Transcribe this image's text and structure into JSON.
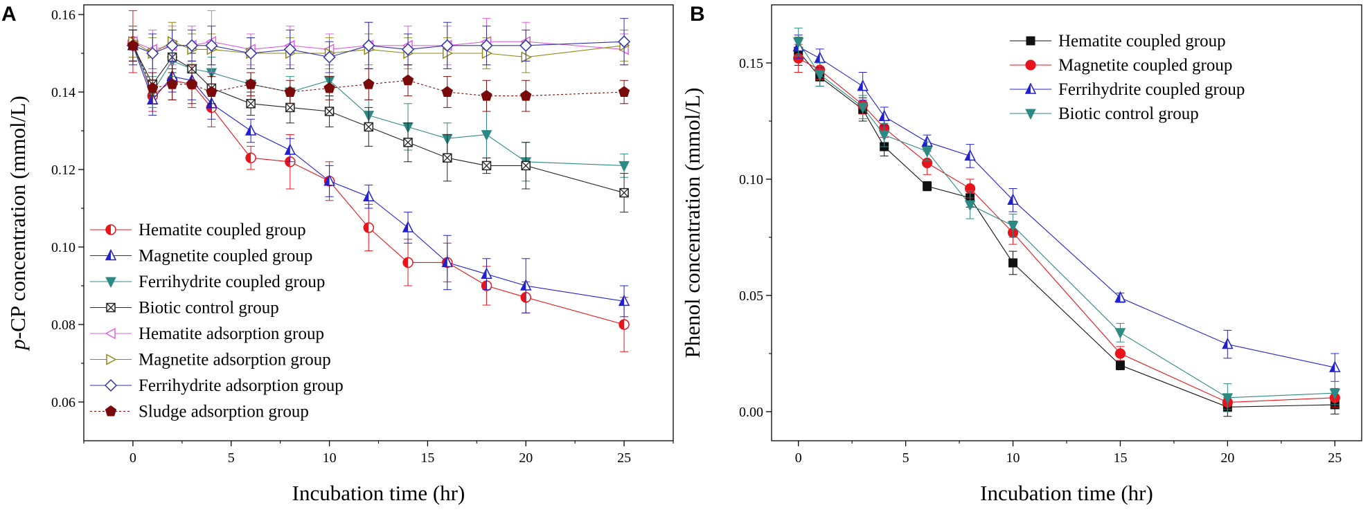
{
  "chart_data": [
    {
      "panel_label": "A",
      "type": "line",
      "xlabel": "Incubation time (hr)",
      "ylabel_italic": "p",
      "ylabel": "-CP concentration (mmol/L)",
      "xlim": [
        -2.5,
        27.5
      ],
      "ylim": [
        0.05,
        0.1625
      ],
      "xticks": [
        0,
        5,
        10,
        15,
        20,
        25
      ],
      "yticks": [
        0.06,
        0.08,
        0.1,
        0.12,
        0.14,
        0.16
      ],
      "ytick_labels": [
        "0.06",
        "0.08",
        "0.10",
        "0.12",
        "0.14",
        "0.16"
      ],
      "series": [
        {
          "name": "Hematite coupled group",
          "color": "#e8141c",
          "marker": "half-circle",
          "dash": "",
          "x": [
            0,
            1,
            2,
            3,
            4,
            6,
            8,
            10,
            12,
            14,
            16,
            18,
            20,
            25
          ],
          "y": [
            0.153,
            0.139,
            0.143,
            0.142,
            0.136,
            0.123,
            0.122,
            0.117,
            0.105,
            0.096,
            0.096,
            0.09,
            0.087,
            0.08
          ],
          "err": [
            0.008,
            0.004,
            0.005,
            0.006,
            0.005,
            0.003,
            0.007,
            0.005,
            0.006,
            0.006,
            0.005,
            0.005,
            0.004,
            0.007
          ]
        },
        {
          "name": "Magnetite coupled group",
          "color": "#2020d0",
          "marker": "triangle-up",
          "dash": "",
          "x": [
            0,
            1,
            2,
            3,
            4,
            6,
            8,
            10,
            12,
            14,
            16,
            18,
            20,
            25
          ],
          "y": [
            0.152,
            0.138,
            0.144,
            0.143,
            0.137,
            0.13,
            0.125,
            0.117,
            0.113,
            0.105,
            0.096,
            0.093,
            0.09,
            0.086
          ],
          "err": [
            0.005,
            0.004,
            0.004,
            0.005,
            0.004,
            0.003,
            0.003,
            0.004,
            0.003,
            0.004,
            0.007,
            0.004,
            0.007,
            0.004
          ]
        },
        {
          "name": "Ferrihydrite coupled group",
          "color": "#2c8a85",
          "marker": "triangle-down",
          "dash": "",
          "x": [
            0,
            1,
            2,
            3,
            4,
            6,
            8,
            10,
            12,
            14,
            16,
            18,
            20,
            25
          ],
          "y": [
            0.152,
            0.14,
            0.148,
            0.146,
            0.145,
            0.142,
            0.14,
            0.143,
            0.134,
            0.131,
            0.128,
            0.129,
            0.122,
            0.121
          ],
          "err": [
            0.004,
            0.004,
            0.004,
            0.004,
            0.004,
            0.003,
            0.004,
            0.004,
            0.004,
            0.006,
            0.004,
            0.006,
            0.005,
            0.003
          ]
        },
        {
          "name": "Biotic control group",
          "color": "#222222",
          "marker": "square-x",
          "dash": "",
          "x": [
            0,
            1,
            2,
            3,
            4,
            6,
            8,
            10,
            12,
            14,
            16,
            18,
            20,
            25
          ],
          "y": [
            0.152,
            0.142,
            0.149,
            0.146,
            0.141,
            0.137,
            0.136,
            0.135,
            0.131,
            0.127,
            0.123,
            0.121,
            0.121,
            0.114
          ],
          "err": [
            0.004,
            0.003,
            0.004,
            0.004,
            0.004,
            0.003,
            0.004,
            0.004,
            0.005,
            0.005,
            0.006,
            0.002,
            0.006,
            0.005
          ]
        },
        {
          "name": "Hematite adsorption group",
          "color": "#e060e0",
          "marker": "triangle-left",
          "dash": "",
          "x": [
            0,
            1,
            2,
            3,
            4,
            6,
            8,
            10,
            12,
            14,
            16,
            18,
            20,
            25
          ],
          "y": [
            0.153,
            0.151,
            0.152,
            0.152,
            0.153,
            0.151,
            0.152,
            0.151,
            0.152,
            0.152,
            0.152,
            0.153,
            0.153,
            0.151
          ],
          "err": [
            0.004,
            0.005,
            0.005,
            0.005,
            0.008,
            0.004,
            0.005,
            0.004,
            0.006,
            0.005,
            0.005,
            0.006,
            0.005,
            0.004
          ]
        },
        {
          "name": "Magnetite adsorption group",
          "color": "#8c8a18",
          "marker": "triangle-right",
          "dash": "",
          "x": [
            0,
            1,
            2,
            3,
            4,
            6,
            8,
            10,
            12,
            14,
            16,
            18,
            20,
            25
          ],
          "y": [
            0.153,
            0.15,
            0.153,
            0.151,
            0.151,
            0.15,
            0.15,
            0.15,
            0.151,
            0.15,
            0.15,
            0.15,
            0.149,
            0.152
          ],
          "err": [
            0.004,
            0.004,
            0.005,
            0.004,
            0.004,
            0.004,
            0.004,
            0.004,
            0.004,
            0.004,
            0.004,
            0.004,
            0.004,
            0.004
          ]
        },
        {
          "name": "Ferrihydrite adsorption group",
          "color": "#3030b0",
          "marker": "diamond",
          "dash": "",
          "x": [
            0,
            1,
            2,
            3,
            4,
            6,
            8,
            10,
            12,
            14,
            16,
            18,
            20,
            25
          ],
          "y": [
            0.152,
            0.15,
            0.152,
            0.152,
            0.152,
            0.15,
            0.151,
            0.149,
            0.152,
            0.151,
            0.152,
            0.152,
            0.152,
            0.153
          ],
          "err": [
            0.004,
            0.005,
            0.004,
            0.004,
            0.005,
            0.004,
            0.005,
            0.004,
            0.006,
            0.004,
            0.006,
            0.005,
            0.004,
            0.006
          ]
        },
        {
          "name": "Sludge adsorption group",
          "color": "#7a0a0a",
          "marker": "pentagon",
          "dash": "3,3",
          "x": [
            0,
            1,
            2,
            3,
            4,
            6,
            8,
            10,
            12,
            14,
            16,
            18,
            20,
            25
          ],
          "y": [
            0.152,
            0.141,
            0.142,
            0.142,
            0.14,
            0.142,
            0.14,
            0.141,
            0.142,
            0.143,
            0.14,
            0.139,
            0.139,
            0.14
          ],
          "err": [
            0.004,
            0.004,
            0.004,
            0.005,
            0.004,
            0.003,
            0.003,
            0.003,
            0.004,
            0.004,
            0.004,
            0.004,
            0.004,
            0.003
          ]
        }
      ]
    },
    {
      "panel_label": "B",
      "type": "line",
      "xlabel": "Incubation time (hr)",
      "ylabel_italic": "",
      "ylabel": "Phenol concentration (mmol/L)",
      "xlim": [
        -1.25,
        26.25
      ],
      "ylim": [
        -0.0125,
        0.175
      ],
      "xticks": [
        0,
        5,
        10,
        15,
        20,
        25
      ],
      "yticks": [
        0.0,
        0.05,
        0.1,
        0.15
      ],
      "ytick_labels": [
        "0.00",
        "0.05",
        "0.10",
        "0.15"
      ],
      "series": [
        {
          "name": "Hematite coupled group",
          "color": "#111111",
          "marker": "square",
          "dash": "",
          "x": [
            0,
            1,
            3,
            4,
            6,
            8,
            10,
            15,
            20,
            25
          ],
          "y": [
            0.155,
            0.144,
            0.13,
            0.114,
            0.097,
            0.092,
            0.064,
            0.02,
            0.002,
            0.003
          ],
          "err": [
            0.006,
            0.004,
            0.005,
            0.004,
            0.002,
            0.004,
            0.005,
            0.002,
            0.004,
            0.004
          ]
        },
        {
          "name": "Magnetite coupled group",
          "color": "#e8141c",
          "marker": "circle",
          "dash": "",
          "x": [
            0,
            1,
            3,
            4,
            6,
            8,
            10,
            15,
            20,
            25
          ],
          "y": [
            0.152,
            0.147,
            0.132,
            0.122,
            0.107,
            0.096,
            0.077,
            0.025,
            0.004,
            0.006
          ],
          "err": [
            0.006,
            0.004,
            0.004,
            0.004,
            0.005,
            0.004,
            0.005,
            0.003,
            0.003,
            0.004
          ]
        },
        {
          "name": "Ferrihydrite coupled group",
          "color": "#2020d0",
          "marker": "triangle-up",
          "dash": "",
          "x": [
            0,
            1,
            3,
            4,
            6,
            8,
            10,
            15,
            20,
            25
          ],
          "y": [
            0.157,
            0.152,
            0.14,
            0.127,
            0.116,
            0.11,
            0.091,
            0.049,
            0.029,
            0.019
          ],
          "err": [
            0.005,
            0.004,
            0.006,
            0.004,
            0.003,
            0.005,
            0.005,
            0.002,
            0.006,
            0.006
          ]
        },
        {
          "name": "Biotic control group",
          "color": "#2c8a85",
          "marker": "triangle-down",
          "dash": "",
          "x": [
            0,
            1,
            3,
            4,
            6,
            8,
            10,
            15,
            20,
            25
          ],
          "y": [
            0.159,
            0.145,
            0.131,
            0.119,
            0.112,
            0.089,
            0.08,
            0.034,
            0.006,
            0.008
          ],
          "err": [
            0.006,
            0.005,
            0.005,
            0.005,
            0.004,
            0.006,
            0.005,
            0.004,
            0.006,
            0.005
          ]
        }
      ]
    }
  ]
}
